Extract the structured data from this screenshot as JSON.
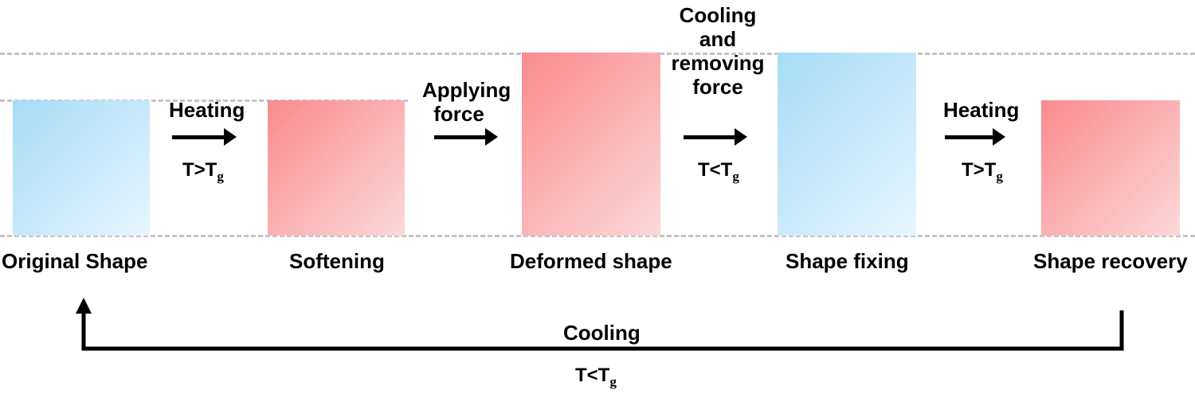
{
  "stages": {
    "original": "Original Shape",
    "softening": "Softening",
    "deformed": "Deformed shape",
    "fixing": "Shape fixing",
    "recovery": "Shape recovery"
  },
  "steps": {
    "heating_1": {
      "label": "Heating",
      "cond_main": "T>T",
      "cond_sub": "g"
    },
    "applying_force": {
      "label_line1": "Applying",
      "label_line2": "force"
    },
    "cooling_removing": {
      "line1": "Cooling",
      "line2": "and",
      "line3": "removing",
      "line4": "force",
      "cond_main": "T<T",
      "cond_sub": "g"
    },
    "heating_2": {
      "label": "Heating",
      "cond_main": "T>T",
      "cond_sub": "g"
    }
  },
  "loop": {
    "label": "Cooling",
    "cond_main": "T<T",
    "cond_sub": "g"
  },
  "colors": {
    "cold": "#a6dcf7",
    "hot": "#f98b8d",
    "guide": "#c4c4c4"
  }
}
